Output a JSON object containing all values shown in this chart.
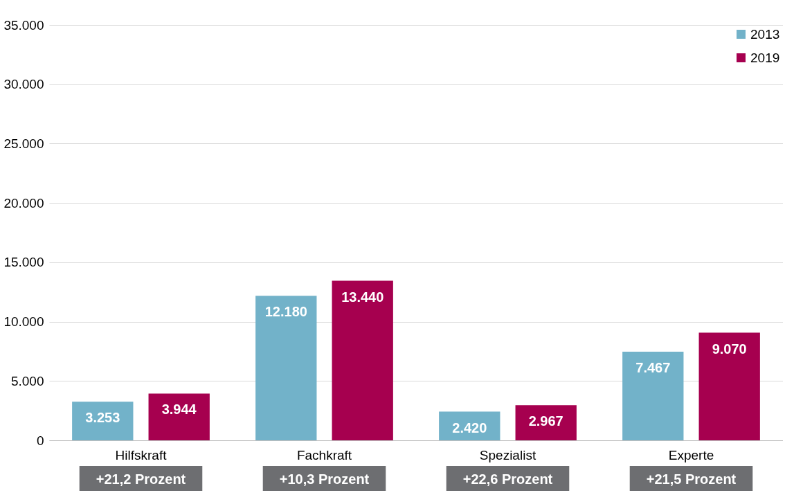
{
  "chart_data": {
    "type": "bar",
    "categories": [
      "Hilfskraft",
      "Fachkraft",
      "Spezialist",
      "Experte"
    ],
    "series": [
      {
        "name": "2013",
        "color": "#72b2c9",
        "values": [
          3253,
          12180,
          2420,
          7467
        ],
        "value_labels": [
          "3.253",
          "12.180",
          "2.420",
          "7.467"
        ]
      },
      {
        "name": "2019",
        "color": "#a6004f",
        "values": [
          3944,
          13440,
          2967,
          9070
        ],
        "value_labels": [
          "3.944",
          "13.440",
          "2.967",
          "9.070"
        ]
      }
    ],
    "ylim": [
      0,
      35000
    ],
    "yticks": [
      0,
      {
        "value": 5000,
        "label": "5.000"
      },
      {
        "value": 10000,
        "label": "10.000"
      },
      {
        "value": 15000,
        "label": "15.000"
      },
      {
        "value": 20000,
        "label": "20.000"
      },
      {
        "value": 25000,
        "label": "25.000"
      },
      {
        "value": 30000,
        "label": "30.000"
      },
      {
        "value": 35000,
        "label": "35.000"
      }
    ],
    "grid": "y",
    "legend": "top right",
    "annotations": [
      "+21,2 Prozent",
      "+10,3 Prozent",
      "+22,6 Prozent",
      "+21,5 Prozent"
    ]
  }
}
